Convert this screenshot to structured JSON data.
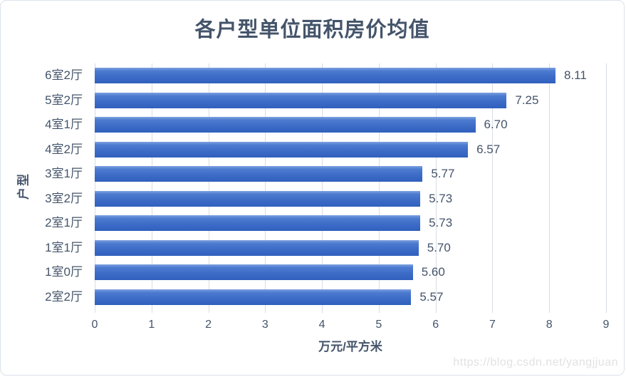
{
  "chart_data": {
    "type": "bar",
    "orientation": "horizontal",
    "title": "各户型单位面积房价均值",
    "xlabel": "万元/平方米",
    "ylabel": "户型",
    "categories": [
      "6室2厅",
      "5室2厅",
      "4室1厅",
      "4室2厅",
      "3室1厅",
      "3室2厅",
      "2室1厅",
      "1室1厅",
      "1室0厅",
      "2室2厅"
    ],
    "values": [
      8.11,
      7.25,
      6.7,
      6.57,
      5.77,
      5.73,
      5.73,
      5.7,
      5.6,
      5.57
    ],
    "value_labels": [
      "8.11",
      "7.25",
      "6.70",
      "6.57",
      "5.77",
      "5.73",
      "5.73",
      "5.70",
      "5.60",
      "5.57"
    ],
    "x_ticks": [
      "0",
      "1",
      "2",
      "3",
      "4",
      "5",
      "6",
      "7",
      "8",
      "9"
    ],
    "xlim": [
      0,
      9
    ],
    "grid": "vertical-gridlines",
    "legend": "none",
    "bar_color": "#4472c4",
    "text_color": "#44546a",
    "gridline_color": "#d8dce3"
  },
  "watermark": "https://blog.csdn.net/yangjjuan"
}
